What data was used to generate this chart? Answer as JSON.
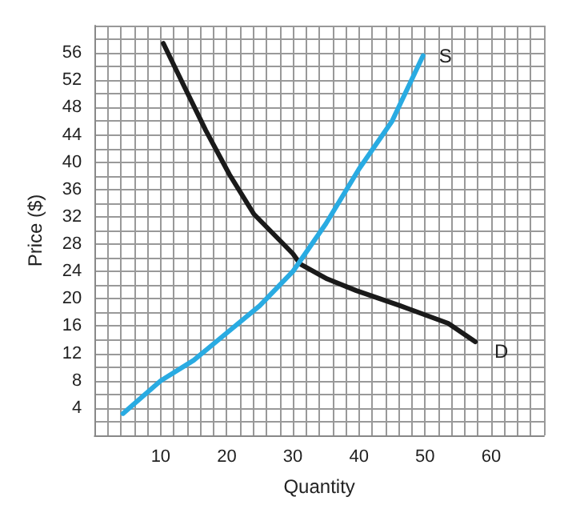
{
  "chart_data": {
    "type": "line",
    "xlabel": "Quantity",
    "ylabel": "Price ($)",
    "xlim": [
      0,
      68
    ],
    "ylim": [
      0,
      60
    ],
    "xticks": [
      10,
      20,
      30,
      40,
      50,
      60
    ],
    "yticks": [
      4,
      8,
      12,
      16,
      20,
      24,
      28,
      32,
      36,
      40,
      44,
      48,
      52,
      56
    ],
    "grid": true,
    "legend": false,
    "marker": "none",
    "line_style": "solid",
    "series": [
      {
        "name": "D",
        "color": "#1a1a1a",
        "x": [
          10.4,
          13.1,
          16.8,
          20.4,
          24.1,
          30,
          31.1,
          35.2,
          39.6,
          46.2,
          53.5,
          57.6
        ],
        "values": [
          57.4,
          52,
          44.7,
          38.2,
          32.4,
          26.6,
          25.1,
          22.9,
          21.2,
          19,
          16.4,
          13.7
        ]
      },
      {
        "name": "S",
        "color": "#29abe2",
        "x": [
          4.3,
          10,
          15,
          20,
          25,
          30,
          35,
          40,
          45,
          49.7
        ],
        "values": [
          3.2,
          8,
          11,
          15,
          19,
          24,
          31,
          39,
          46,
          55.6
        ]
      }
    ]
  }
}
